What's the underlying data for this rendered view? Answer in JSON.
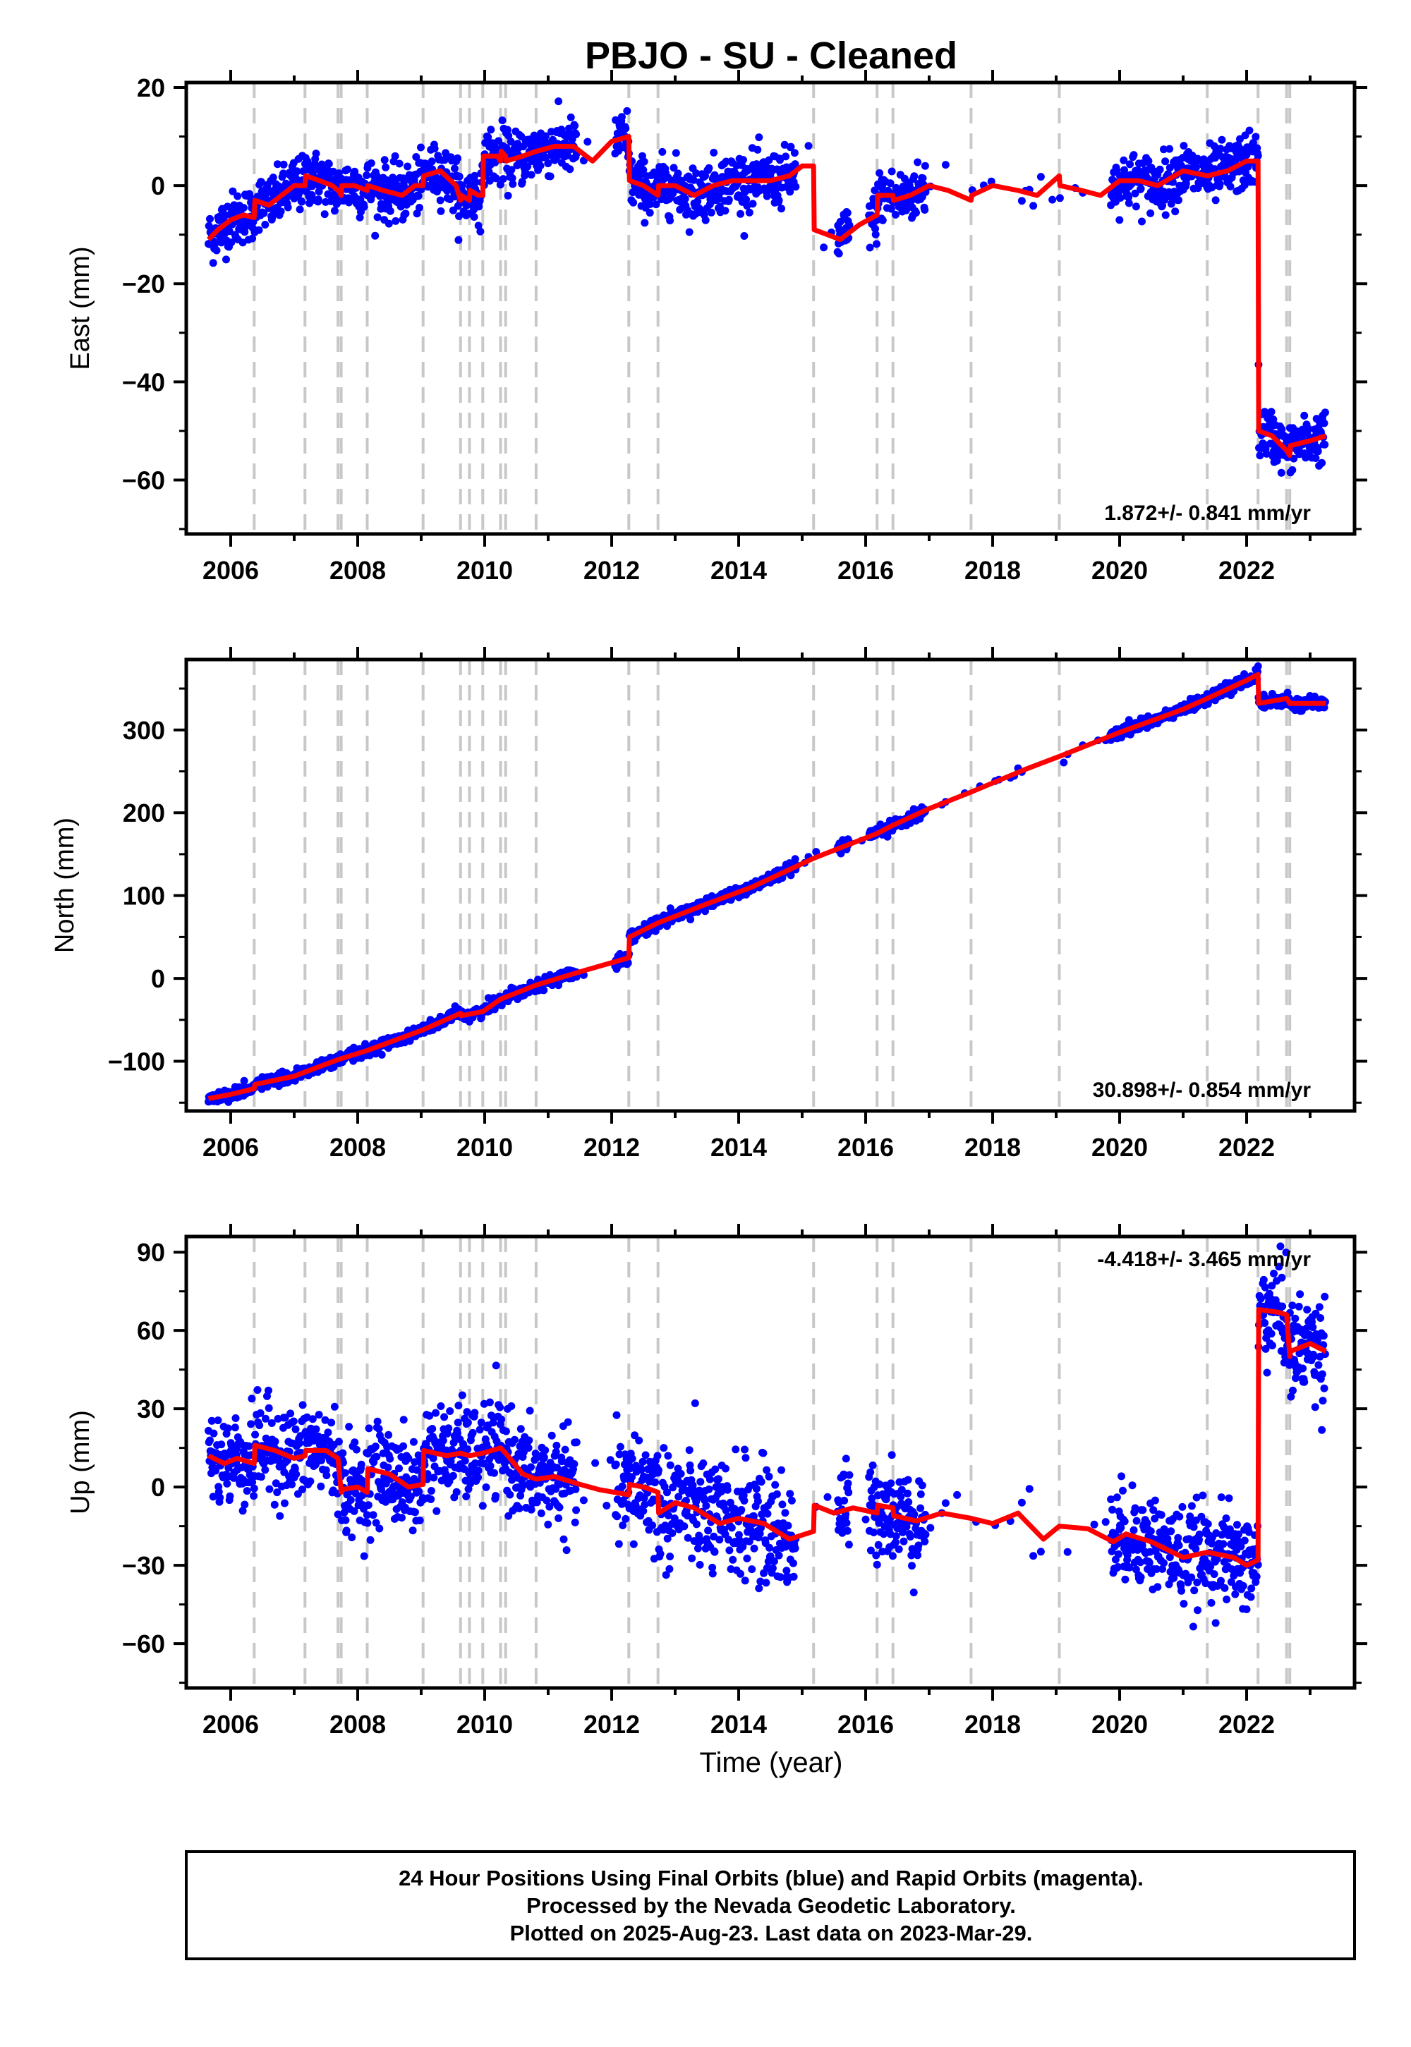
{
  "title": "PBJO  - SU - Cleaned",
  "xlabel": "Time (year)",
  "colors": {
    "final_orbits": "#0000ff",
    "model": "#ff0000",
    "event_lines": "#c8c8c8",
    "frame": "#000000"
  },
  "footer": [
    "24 Hour Positions Using Final Orbits (blue) and Rapid Orbits (magenta).",
    "Processed by the Nevada Geodetic Laboratory.",
    "Plotted on 2025-Aug-23. Last data on 2023-Mar-29."
  ],
  "chart_data": [
    {
      "type": "scatter",
      "panel": "east",
      "ylabel": "East (mm)",
      "rate_label": "1.872+/- 0.841 mm/yr",
      "rate_position": "bottom-right",
      "xlim": [
        2005.3,
        2023.7
      ],
      "ylim": [
        -71,
        21
      ],
      "x_ticks": [
        2006,
        2008,
        2010,
        2012,
        2014,
        2016,
        2018,
        2020,
        2022
      ],
      "y_ticks": [
        -60,
        -40,
        -20,
        0,
        20
      ],
      "event_lines": [
        2006.37,
        2007.17,
        2007.69,
        2007.74,
        2008.15,
        2009.03,
        2009.62,
        2009.76,
        2009.97,
        2010.25,
        2010.33,
        2010.81,
        2012.27,
        2012.73,
        2015.18,
        2016.18,
        2016.43,
        2017.66,
        2019.05,
        2021.38,
        2022.18,
        2022.63,
        2022.68
      ],
      "model_line": [
        [
          2005.65,
          -11
        ],
        [
          2005.8,
          -9
        ],
        [
          2006.0,
          -7
        ],
        [
          2006.2,
          -6
        ],
        [
          2006.37,
          -6.5
        ],
        [
          2006.38,
          -3
        ],
        [
          2006.6,
          -4
        ],
        [
          2006.8,
          -2
        ],
        [
          2007.0,
          0
        ],
        [
          2007.17,
          0
        ],
        [
          2007.18,
          2
        ],
        [
          2007.4,
          1
        ],
        [
          2007.6,
          0
        ],
        [
          2007.69,
          -1
        ],
        [
          2007.7,
          -1
        ],
        [
          2007.74,
          -2
        ],
        [
          2007.75,
          0
        ],
        [
          2007.95,
          0
        ],
        [
          2008.15,
          -1
        ],
        [
          2008.16,
          0
        ],
        [
          2008.4,
          -1
        ],
        [
          2008.7,
          -2
        ],
        [
          2008.9,
          0
        ],
        [
          2009.03,
          0
        ],
        [
          2009.04,
          2
        ],
        [
          2009.3,
          3
        ],
        [
          2009.55,
          0
        ],
        [
          2009.62,
          -3
        ],
        [
          2009.63,
          -2
        ],
        [
          2009.76,
          -3
        ],
        [
          2009.77,
          -1
        ],
        [
          2009.9,
          -2
        ],
        [
          2009.97,
          -2
        ],
        [
          2009.98,
          6
        ],
        [
          2010.2,
          6
        ],
        [
          2010.25,
          5
        ],
        [
          2010.26,
          7
        ],
        [
          2010.33,
          6
        ],
        [
          2010.34,
          5
        ],
        [
          2010.6,
          6
        ],
        [
          2010.81,
          7
        ],
        [
          2010.82,
          7
        ],
        [
          2011.1,
          8
        ],
        [
          2011.4,
          8
        ],
        [
          2011.7,
          5
        ],
        [
          2012.0,
          9
        ],
        [
          2012.27,
          10
        ],
        [
          2012.28,
          1
        ],
        [
          2012.5,
          0
        ],
        [
          2012.73,
          -2
        ],
        [
          2012.74,
          0
        ],
        [
          2013.0,
          0
        ],
        [
          2013.3,
          -2
        ],
        [
          2013.6,
          0
        ],
        [
          2013.9,
          1
        ],
        [
          2014.2,
          1
        ],
        [
          2014.5,
          1
        ],
        [
          2014.8,
          2
        ],
        [
          2015.0,
          4
        ],
        [
          2015.18,
          4
        ],
        [
          2015.19,
          -9
        ],
        [
          2015.4,
          -10
        ],
        [
          2015.6,
          -11
        ],
        [
          2015.9,
          -8
        ],
        [
          2016.18,
          -6
        ],
        [
          2016.19,
          -2
        ],
        [
          2016.43,
          -2
        ],
        [
          2016.44,
          -3
        ],
        [
          2016.7,
          -2
        ],
        [
          2017.0,
          0
        ],
        [
          2017.3,
          -1
        ],
        [
          2017.66,
          -3
        ],
        [
          2017.67,
          -2
        ],
        [
          2018.0,
          0
        ],
        [
          2018.4,
          -1
        ],
        [
          2018.7,
          -2
        ],
        [
          2019.05,
          2
        ],
        [
          2019.06,
          0
        ],
        [
          2019.4,
          -1
        ],
        [
          2019.7,
          -2
        ],
        [
          2020.0,
          1
        ],
        [
          2020.3,
          1
        ],
        [
          2020.6,
          0
        ],
        [
          2021.0,
          3
        ],
        [
          2021.38,
          2
        ],
        [
          2021.39,
          2
        ],
        [
          2021.7,
          3
        ],
        [
          2022.0,
          5
        ],
        [
          2022.18,
          5
        ],
        [
          2022.19,
          -50
        ],
        [
          2022.4,
          -51
        ],
        [
          2022.63,
          -54
        ],
        [
          2022.68,
          -55
        ],
        [
          2022.69,
          -53
        ],
        [
          2023.0,
          -52
        ],
        [
          2023.25,
          -51
        ]
      ]
    },
    {
      "type": "scatter",
      "panel": "north",
      "ylabel": "North (mm)",
      "rate_label": "30.898+/- 0.854 mm/yr",
      "rate_position": "bottom-right",
      "xlim": [
        2005.3,
        2023.7
      ],
      "ylim": [
        -160,
        385
      ],
      "x_ticks": [
        2006,
        2008,
        2010,
        2012,
        2014,
        2016,
        2018,
        2020,
        2022
      ],
      "y_ticks": [
        -100,
        0,
        100,
        200,
        300
      ],
      "event_lines": [
        2006.37,
        2007.17,
        2007.69,
        2007.74,
        2008.15,
        2009.03,
        2009.62,
        2009.76,
        2009.97,
        2010.25,
        2010.33,
        2010.81,
        2012.27,
        2012.73,
        2015.18,
        2016.18,
        2016.43,
        2017.66,
        2019.05,
        2021.38,
        2022.18,
        2022.63,
        2022.68
      ],
      "model_line": [
        [
          2005.65,
          -145
        ],
        [
          2006.0,
          -140
        ],
        [
          2006.37,
          -133
        ],
        [
          2006.38,
          -128
        ],
        [
          2007.0,
          -118
        ],
        [
          2007.17,
          -113
        ],
        [
          2007.69,
          -98
        ],
        [
          2008.15,
          -87
        ],
        [
          2009.03,
          -62
        ],
        [
          2009.62,
          -42
        ],
        [
          2009.63,
          -45
        ],
        [
          2009.97,
          -40
        ],
        [
          2010.25,
          -25
        ],
        [
          2010.81,
          -8
        ],
        [
          2011.5,
          8
        ],
        [
          2012.27,
          25
        ],
        [
          2012.28,
          50
        ],
        [
          2012.73,
          67
        ],
        [
          2013.5,
          90
        ],
        [
          2014.2,
          110
        ],
        [
          2015.18,
          145
        ],
        [
          2016.18,
          175
        ],
        [
          2016.43,
          185
        ],
        [
          2017.0,
          205
        ],
        [
          2017.66,
          225
        ],
        [
          2018.5,
          252
        ],
        [
          2019.05,
          268
        ],
        [
          2020.0,
          297
        ],
        [
          2021.0,
          325
        ],
        [
          2021.38,
          338
        ],
        [
          2022.0,
          360
        ],
        [
          2022.18,
          367
        ],
        [
          2022.19,
          332
        ],
        [
          2022.63,
          338
        ],
        [
          2022.68,
          332
        ],
        [
          2023.25,
          332
        ]
      ]
    },
    {
      "type": "scatter",
      "panel": "up",
      "ylabel": "Up (mm)",
      "rate_label": "-4.418+/- 3.465 mm/yr",
      "rate_position": "top-right",
      "xlim": [
        2005.3,
        2023.7
      ],
      "ylim": [
        -77,
        96
      ],
      "x_ticks": [
        2006,
        2008,
        2010,
        2012,
        2014,
        2016,
        2018,
        2020,
        2022
      ],
      "y_ticks": [
        -60,
        -30,
        0,
        30,
        60,
        90
      ],
      "event_lines": [
        2006.37,
        2007.17,
        2007.69,
        2007.74,
        2008.15,
        2009.03,
        2009.62,
        2009.76,
        2009.97,
        2010.25,
        2010.33,
        2010.81,
        2012.27,
        2012.73,
        2015.18,
        2016.18,
        2016.43,
        2017.66,
        2019.05,
        2021.38,
        2022.18,
        2022.63,
        2022.68
      ],
      "model_line": [
        [
          2005.65,
          12
        ],
        [
          2005.9,
          9
        ],
        [
          2006.1,
          11
        ],
        [
          2006.37,
          9
        ],
        [
          2006.38,
          16
        ],
        [
          2006.7,
          14
        ],
        [
          2007.0,
          11
        ],
        [
          2007.17,
          12
        ],
        [
          2007.18,
          14
        ],
        [
          2007.5,
          14
        ],
        [
          2007.69,
          11
        ],
        [
          2007.74,
          -2
        ],
        [
          2007.75,
          -1
        ],
        [
          2008.0,
          0
        ],
        [
          2008.15,
          -2
        ],
        [
          2008.16,
          7
        ],
        [
          2008.5,
          5
        ],
        [
          2008.8,
          0
        ],
        [
          2009.03,
          1
        ],
        [
          2009.04,
          14
        ],
        [
          2009.4,
          12
        ],
        [
          2009.62,
          13
        ],
        [
          2009.76,
          12
        ],
        [
          2009.97,
          13
        ],
        [
          2010.25,
          15
        ],
        [
          2010.33,
          13
        ],
        [
          2010.6,
          5
        ],
        [
          2010.81,
          3
        ],
        [
          2011.1,
          4
        ],
        [
          2011.5,
          1
        ],
        [
          2011.8,
          -1
        ],
        [
          2012.27,
          -3
        ],
        [
          2012.28,
          1
        ],
        [
          2012.5,
          0
        ],
        [
          2012.73,
          -2
        ],
        [
          2012.74,
          -10
        ],
        [
          2013.0,
          -6
        ],
        [
          2013.3,
          -8
        ],
        [
          2013.7,
          -14
        ],
        [
          2014.0,
          -12
        ],
        [
          2014.4,
          -14
        ],
        [
          2014.8,
          -20
        ],
        [
          2015.18,
          -17
        ],
        [
          2015.19,
          -7
        ],
        [
          2015.5,
          -10
        ],
        [
          2015.8,
          -8
        ],
        [
          2016.18,
          -10
        ],
        [
          2016.19,
          -7
        ],
        [
          2016.43,
          -8
        ],
        [
          2016.44,
          -11
        ],
        [
          2016.8,
          -13
        ],
        [
          2017.2,
          -10
        ],
        [
          2017.66,
          -12
        ],
        [
          2018.0,
          -14
        ],
        [
          2018.4,
          -10
        ],
        [
          2018.8,
          -20
        ],
        [
          2019.05,
          -15
        ],
        [
          2019.5,
          -16
        ],
        [
          2019.9,
          -21
        ],
        [
          2020.1,
          -18
        ],
        [
          2020.5,
          -21
        ],
        [
          2021.0,
          -27
        ],
        [
          2021.38,
          -25
        ],
        [
          2021.8,
          -27
        ],
        [
          2022.0,
          -30
        ],
        [
          2022.18,
          -28
        ],
        [
          2022.19,
          68
        ],
        [
          2022.5,
          67
        ],
        [
          2022.63,
          66
        ],
        [
          2022.68,
          50
        ],
        [
          2022.69,
          52
        ],
        [
          2023.0,
          55
        ],
        [
          2023.25,
          52
        ]
      ]
    }
  ]
}
